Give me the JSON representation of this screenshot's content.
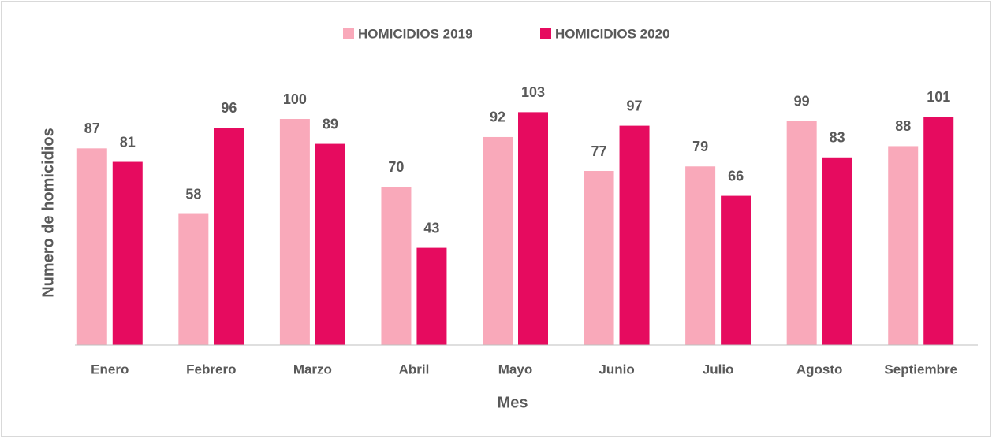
{
  "chart_data": {
    "type": "bar",
    "categories": [
      "Enero",
      "Febrero",
      "Marzo",
      "Abril",
      "Mayo",
      "Junio",
      "Julio",
      "Agosto",
      "Septiembre"
    ],
    "series": [
      {
        "name": "HOMICIDIOS 2019",
        "color": "#f9a9ba",
        "values": [
          87,
          58,
          100,
          70,
          92,
          77,
          79,
          99,
          88
        ]
      },
      {
        "name": "HOMICIDIOS 2020",
        "color": "#e60b5f",
        "values": [
          81,
          96,
          89,
          43,
          103,
          97,
          66,
          83,
          101
        ]
      }
    ],
    "xlabel": "Mes",
    "ylabel": "Numero de homicidios",
    "ylim": [
      0,
      110
    ],
    "legend": "top"
  }
}
